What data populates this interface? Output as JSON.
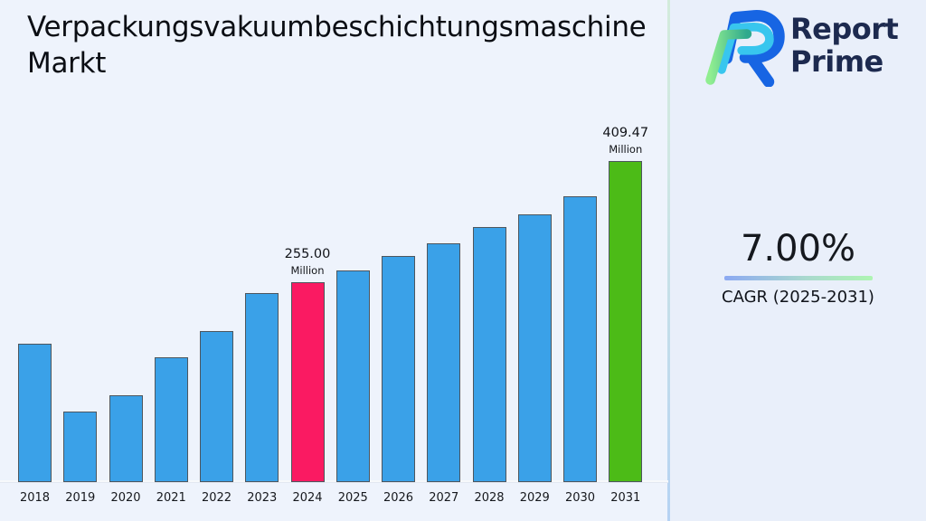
{
  "header": {
    "title": "Verpackungsvakuumbeschichtungsmaschine Markt",
    "title_lines": [
      "Verpackungsvakuumbeschichtungsmaschine",
      "Markt"
    ]
  },
  "brand": {
    "logo": "report-prime-logo",
    "line1": "Report",
    "line2": "Prime"
  },
  "cagr_panel": {
    "value": "7.00%",
    "label": "CAGR (2025-2031)"
  },
  "chart_data": {
    "type": "bar",
    "title": "Verpackungsvakuumbeschichtungsmaschine Markt",
    "unit": "Million",
    "categories": [
      "2018",
      "2019",
      "2020",
      "2021",
      "2022",
      "2023",
      "2024",
      "2025",
      "2026",
      "2027",
      "2028",
      "2029",
      "2030",
      "2031"
    ],
    "values": [
      176,
      90,
      111,
      159,
      193,
      241,
      255.0,
      270,
      288,
      305,
      325,
      342,
      365,
      409.47
    ],
    "labeled_bars": [
      {
        "category": "2024",
        "value_label": "255.00",
        "unit_label": "Million"
      },
      {
        "category": "2031",
        "value_label": "409.47",
        "unit_label": "Million"
      }
    ],
    "ylim": [
      0,
      440
    ],
    "xlabel": "",
    "ylabel": "",
    "grid": false,
    "legend": false,
    "colors": {
      "default": "#3AA1E8",
      "2024": "#FA1A62",
      "2031": "#4CBB17"
    }
  },
  "style_colors": {
    "page_bg": "#eef3fc",
    "panel_bg": "#e9effa",
    "bar_border": "#4d565e",
    "brand_navy": "#1d2a4f",
    "underline_start": "#8CA9F2",
    "underline_end": "#AEF5B2"
  }
}
